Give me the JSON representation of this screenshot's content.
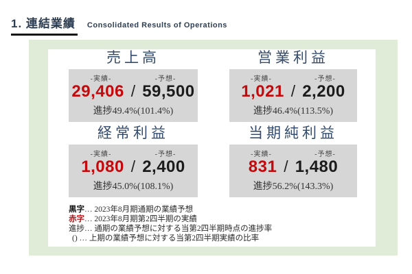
{
  "header": {
    "title_jp": "1. 連結業績",
    "title_en": "Consolidated Results of Operations"
  },
  "labels": {
    "actual": "-実績-",
    "forecast": "-予想-"
  },
  "panels": [
    {
      "title": "売上高",
      "actual": "29,406",
      "slash": "/",
      "forecast": "59,500",
      "progress": "進捗49.4%(101.4%)"
    },
    {
      "title": "営業利益",
      "actual": "1,021",
      "slash": "/",
      "forecast": "2,200",
      "progress": "進捗46.4%(113.5%)"
    },
    {
      "title": "経常利益",
      "actual": "1,080",
      "slash": "/",
      "forecast": "2,400",
      "progress": "進捗45.0%(108.1%)"
    },
    {
      "title": "当期純利益",
      "actual": "831",
      "slash": "/",
      "forecast": "1,480",
      "progress": "進捗56.2%(143.3%)"
    }
  ],
  "notes": [
    {
      "key": "黒字",
      "text": "… 2023年8月期通期の業績予想"
    },
    {
      "key": "赤字",
      "text": "… 2023年8月期第2四半期の実績"
    },
    {
      "key": "進捗",
      "text": "… 通期の業績予想に対する当第2四半期時点の進捗率"
    },
    {
      "key": "()",
      "text": " … 上期の業績予想に対する当第2四半期実績の比率"
    }
  ],
  "colors": {
    "accent_red": "#c4090c",
    "frame_green": "#e1ecd8",
    "box_gray": "#d6d6d6",
    "header_navy": "#2e3e52",
    "title_navy": "#344b6e"
  }
}
